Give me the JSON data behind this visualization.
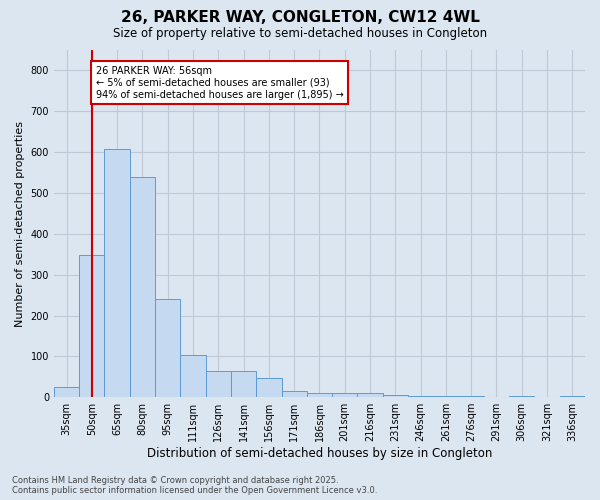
{
  "title": "26, PARKER WAY, CONGLETON, CW12 4WL",
  "subtitle": "Size of property relative to semi-detached houses in Congleton",
  "xlabel": "Distribution of semi-detached houses by size in Congleton",
  "ylabel": "Number of semi-detached properties",
  "footer_line1": "Contains HM Land Registry data © Crown copyright and database right 2025.",
  "footer_line2": "Contains public sector information licensed under the Open Government Licence v3.0.",
  "annotation_title": "26 PARKER WAY: 56sqm",
  "annotation_line1": "← 5% of semi-detached houses are smaller (93)",
  "annotation_line2": "94% of semi-detached houses are larger (1,895) →",
  "bar_labels": [
    "35sqm",
    "50sqm",
    "65sqm",
    "80sqm",
    "95sqm",
    "111sqm",
    "126sqm",
    "141sqm",
    "156sqm",
    "171sqm",
    "186sqm",
    "201sqm",
    "216sqm",
    "231sqm",
    "246sqm",
    "261sqm",
    "276sqm",
    "291sqm",
    "306sqm",
    "321sqm",
    "336sqm"
  ],
  "bar_values": [
    25,
    348,
    608,
    538,
    240,
    103,
    65,
    65,
    47,
    15,
    10,
    10,
    10,
    5,
    3,
    3,
    3,
    0,
    3,
    0,
    3
  ],
  "bar_color": "#c5d9f1",
  "bar_edge_color": "#5b9bd5",
  "grid_color": "#c0c8d8",
  "background_color": "#dce6f1",
  "red_line_x": 1.0,
  "ylim": [
    0,
    850
  ],
  "yticks": [
    0,
    100,
    200,
    300,
    400,
    500,
    600,
    700,
    800
  ],
  "red_color": "#cc0000",
  "annotation_box_color": "#ffffff",
  "annotation_box_edge": "#cc0000",
  "title_fontsize": 11,
  "subtitle_fontsize": 8.5,
  "ylabel_fontsize": 8,
  "xlabel_fontsize": 8.5,
  "tick_fontsize": 7,
  "footer_fontsize": 6
}
